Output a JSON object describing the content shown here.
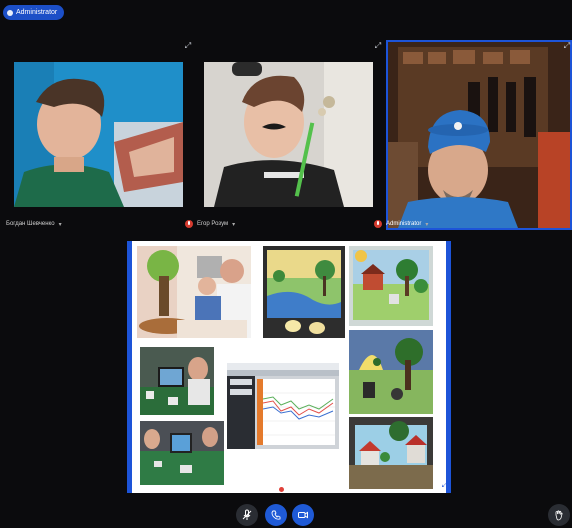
{
  "header": {
    "admin_badge": "Administrator"
  },
  "participants": [
    {
      "name": "Богдан Шевченко",
      "muted": false
    },
    {
      "name": "Егор Розум",
      "muted": true
    },
    {
      "name": "Administrator",
      "muted": true
    }
  ],
  "controls": {
    "mic": "mic-off-icon",
    "phone": "phone-icon",
    "camera": "camera-icon",
    "hand": "raise-hand-icon"
  },
  "colors": {
    "accent": "#1d54d8",
    "background": "#0b0b0d",
    "mute_red": "#d53b2f"
  }
}
